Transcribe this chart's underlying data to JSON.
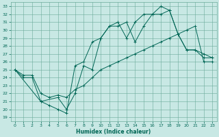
{
  "xlabel": "Humidex (Indice chaleur)",
  "bg_color": "#c8e8e4",
  "grid_color": "#6aaa9a",
  "line_color": "#006655",
  "xlim": [
    -0.5,
    23.5
  ],
  "ylim": [
    18.5,
    33.5
  ],
  "xticks": [
    0,
    1,
    2,
    3,
    4,
    5,
    6,
    7,
    8,
    9,
    10,
    11,
    12,
    13,
    14,
    15,
    16,
    17,
    18,
    19,
    20,
    21,
    22,
    23
  ],
  "yticks": [
    19,
    20,
    21,
    22,
    23,
    24,
    25,
    26,
    27,
    28,
    29,
    30,
    31,
    32,
    33
  ],
  "line1_x": [
    0,
    1,
    2,
    3,
    4,
    5,
    6,
    7,
    8,
    9,
    10,
    11,
    12,
    13,
    14,
    15,
    16,
    17,
    18,
    19,
    20,
    21,
    22,
    23
  ],
  "line1_y": [
    25,
    24,
    24,
    21,
    20.5,
    20,
    19.5,
    25.5,
    26,
    28.5,
    29,
    30.5,
    31,
    29,
    31,
    32,
    32,
    33,
    32.5,
    29.5,
    27.5,
    27.5,
    27,
    26.5
  ],
  "line2_x": [
    0,
    3,
    5,
    6,
    7,
    8,
    9,
    10,
    11,
    12,
    13,
    14,
    15,
    16,
    17,
    18,
    19,
    20,
    21,
    22,
    23
  ],
  "line2_y": [
    25,
    21,
    21.5,
    20,
    22,
    25.5,
    25,
    29,
    30.5,
    30.5,
    31,
    28.5,
    30.5,
    32,
    32,
    32.5,
    29.5,
    27.5,
    27.5,
    26.5,
    26.5
  ],
  "line3_x": [
    0,
    1,
    2,
    3,
    4,
    5,
    6,
    7,
    8,
    9,
    10,
    11,
    12,
    13,
    14,
    15,
    16,
    17,
    18,
    19,
    20,
    21,
    22,
    23
  ],
  "line3_y": [
    25,
    24.3,
    24.3,
    22,
    21.5,
    21.8,
    21.5,
    22.5,
    23,
    24,
    25,
    25.5,
    26,
    26.5,
    27,
    27.5,
    28,
    28.5,
    29,
    29.5,
    30,
    30.5,
    26,
    26
  ]
}
